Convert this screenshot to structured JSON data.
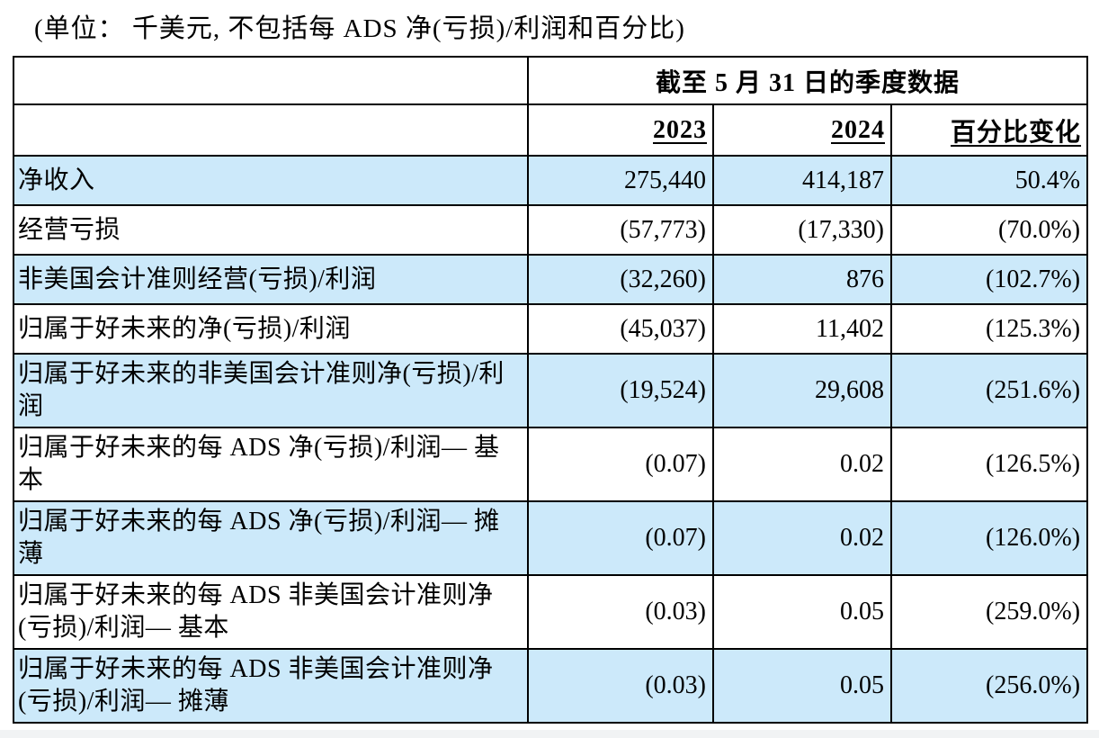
{
  "caption": "(单位： 千美元, 不包括每 ADS 净(亏损)/利润和百分比)",
  "table": {
    "header_span_title": "截至 5 月 31 日的季度数据",
    "columns": [
      "2023",
      "2024",
      "百分比变化"
    ],
    "rows": [
      {
        "label": "净收入",
        "values": [
          "275,440",
          "414,187",
          "50.4%"
        ]
      },
      {
        "label": "经营亏损",
        "values": [
          "(57,773)",
          "(17,330)",
          "(70.0%)"
        ]
      },
      {
        "label": "非美国会计准则经营(亏损)/利润",
        "values": [
          "(32,260)",
          "876",
          "(102.7%)"
        ]
      },
      {
        "label": "归属于好未来的净(亏损)/利润",
        "values": [
          "(45,037)",
          "11,402",
          "(125.3%)"
        ]
      },
      {
        "label": "归属于好未来的非美国会计准则净(亏损)/利润",
        "values": [
          "(19,524)",
          "29,608",
          "(251.6%)"
        ]
      },
      {
        "label": "归属于好未来的每 ADS 净(亏损)/利润— 基本",
        "values": [
          "(0.07)",
          "0.02",
          "(126.5%)"
        ]
      },
      {
        "label": "归属于好未来的每 ADS 净(亏损)/利润— 摊薄",
        "values": [
          "(0.07)",
          "0.02",
          "(126.0%)"
        ]
      },
      {
        "label": "归属于好未来的每 ADS 非美国会计准则净(亏损)/利润— 基本",
        "values": [
          "(0.03)",
          "0.05",
          "(259.0%)"
        ]
      },
      {
        "label": "归属于好未来的每 ADS 非美国会计准则净(亏损)/利润— 摊薄",
        "values": [
          "(0.03)",
          "0.05",
          "(256.0%)"
        ]
      }
    ],
    "colors": {
      "row_highlight": "#cce9fa",
      "row_plain": "#ffffff",
      "border": "#000000",
      "text": "#000000"
    }
  }
}
